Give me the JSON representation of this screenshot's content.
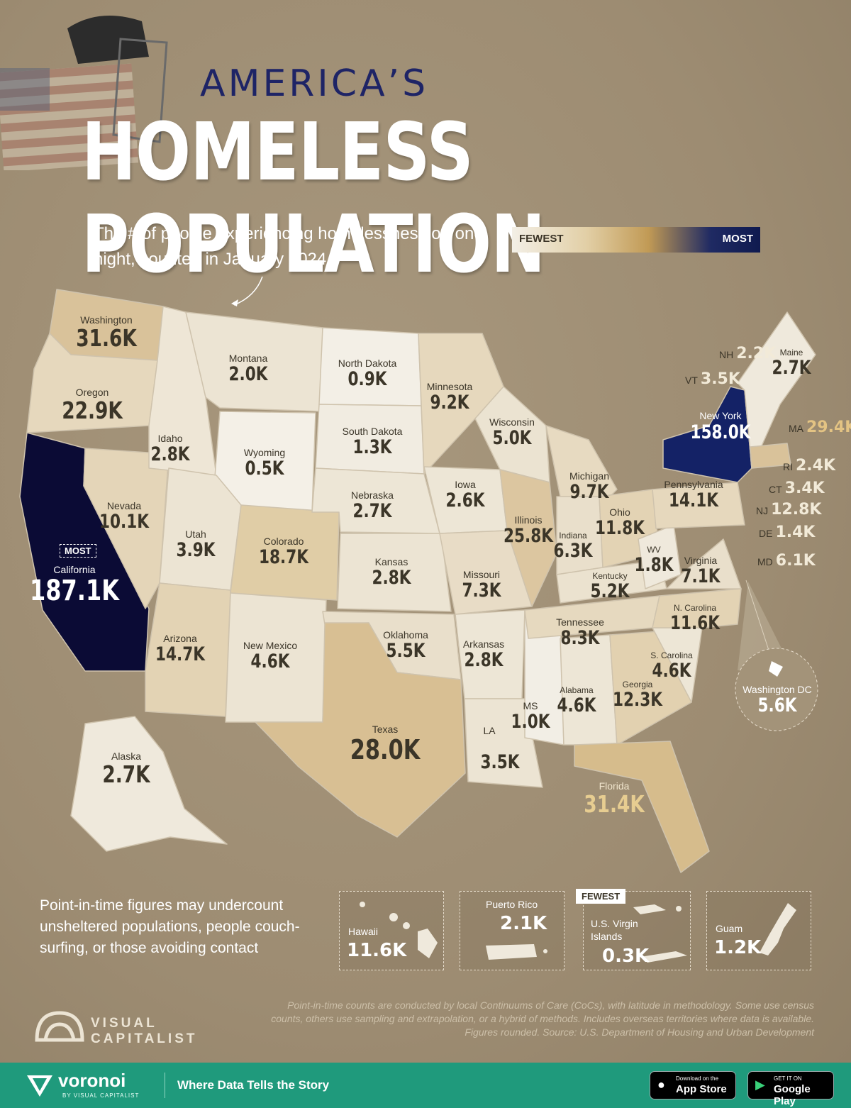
{
  "title_line1": "AMERICA’S",
  "title_line2": "HOMELESS POPULATION",
  "subtitle": "The # of people experiencing homelessness on one night, counted in January 2024",
  "legend": {
    "low": "FEWEST",
    "high": "MOST",
    "colors": [
      "#f3efe6",
      "#c19a55",
      "#0f1a4f"
    ]
  },
  "most_tag": "MOST",
  "fewest_tag": "FEWEST",
  "states": [
    {
      "name": "Washington",
      "value": "31.6K"
    },
    {
      "name": "Oregon",
      "value": "22.9K"
    },
    {
      "name": "California",
      "value": "187.1K"
    },
    {
      "name": "Nevada",
      "value": "10.1K"
    },
    {
      "name": "Idaho",
      "value": "2.8K"
    },
    {
      "name": "Montana",
      "value": "2.0K"
    },
    {
      "name": "Wyoming",
      "value": "0.5K"
    },
    {
      "name": "Utah",
      "value": "3.9K"
    },
    {
      "name": "Arizona",
      "value": "14.7K"
    },
    {
      "name": "Colorado",
      "value": "18.7K"
    },
    {
      "name": "New Mexico",
      "value": "4.6K"
    },
    {
      "name": "North Dakota",
      "value": "0.9K"
    },
    {
      "name": "South Dakota",
      "value": "1.3K"
    },
    {
      "name": "Nebraska",
      "value": "2.7K"
    },
    {
      "name": "Kansas",
      "value": "2.8K"
    },
    {
      "name": "Oklahoma",
      "value": "5.5K"
    },
    {
      "name": "Texas",
      "value": "28.0K"
    },
    {
      "name": "Minnesota",
      "value": "9.2K"
    },
    {
      "name": "Iowa",
      "value": "2.6K"
    },
    {
      "name": "Missouri",
      "value": "7.3K"
    },
    {
      "name": "Arkansas",
      "value": "2.8K"
    },
    {
      "name": "LA",
      "value": "3.5K"
    },
    {
      "name": "Wisconsin",
      "value": "5.0K"
    },
    {
      "name": "Illinois",
      "value": "25.8K"
    },
    {
      "name": "MS",
      "value": "1.0K"
    },
    {
      "name": "Michigan",
      "value": "9.7K"
    },
    {
      "name": "Indiana",
      "value": "6.3K"
    },
    {
      "name": "Kentucky",
      "value": "5.2K"
    },
    {
      "name": "Tennessee",
      "value": "8.3K"
    },
    {
      "name": "Alabama",
      "value": "4.6K"
    },
    {
      "name": "Ohio",
      "value": "11.8K"
    },
    {
      "name": "WV",
      "value": "1.8K"
    },
    {
      "name": "Georgia",
      "value": "12.3K"
    },
    {
      "name": "Florida",
      "value": "31.4K"
    },
    {
      "name": "S. Carolina",
      "value": "4.6K"
    },
    {
      "name": "N. Carolina",
      "value": "11.6K"
    },
    {
      "name": "Virginia",
      "value": "7.1K"
    },
    {
      "name": "Pennsylvania",
      "value": "14.1K"
    },
    {
      "name": "New York",
      "value": "158.0K"
    },
    {
      "name": "Maine",
      "value": "2.7K"
    },
    {
      "name": "Alaska",
      "value": "2.7K"
    },
    {
      "name": "Washington DC",
      "value": "5.6K"
    }
  ],
  "small_states": [
    {
      "name": "NH",
      "value": "2.2K"
    },
    {
      "name": "VT",
      "value": "3.5K"
    },
    {
      "name": "MA",
      "value": "29.4K"
    },
    {
      "name": "RI",
      "value": "2.4K"
    },
    {
      "name": "CT",
      "value": "3.4K"
    },
    {
      "name": "NJ",
      "value": "12.8K"
    },
    {
      "name": "DE",
      "value": "1.4K"
    },
    {
      "name": "MD",
      "value": "6.1K"
    }
  ],
  "territories": [
    {
      "name": "Hawaii",
      "value": "11.6K"
    },
    {
      "name": "Puerto Rico",
      "value": "2.1K"
    },
    {
      "name": "U.S. Virgin Islands",
      "value": "0.3K"
    },
    {
      "name": "Guam",
      "value": "1.2K"
    }
  ],
  "note": "Point-in-time figures may undercount unsheltered populations, people couch-surfing, or those avoiding contact",
  "source": "Point-in-time counts are conducted by local Continuums of Care (CoCs), with latitude in methodology. Some use census counts, others use sampling and extrapolation, or a hybrid of methods. Includes overseas territories where data is available. Figures rounded. Source: U.S. Department of Housing and Urban Development",
  "brand": {
    "logo_line1": "VISUAL",
    "logo_line2": "CAPITALIST"
  },
  "footer": {
    "brand": "voronoi",
    "brand_sub": "BY VISUAL CAPITALIST",
    "tagline": "Where Data Tells the Story",
    "appstore_top": "Download on the",
    "appstore": "App Store",
    "play_top": "GET IT ON",
    "play": "Google Play",
    "color": "#1f9a7c"
  }
}
